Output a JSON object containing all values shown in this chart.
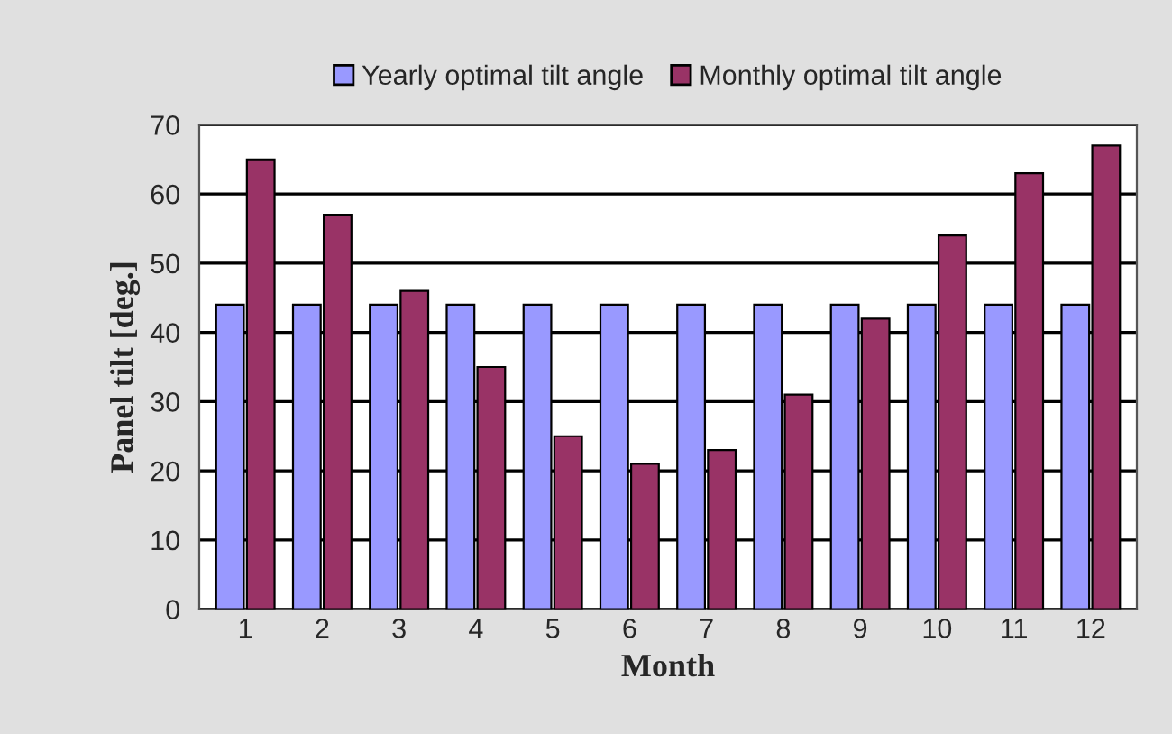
{
  "chart_data": {
    "type": "bar",
    "xlabel": "Month",
    "ylabel": "Panel tilt [deg.]",
    "categories": [
      "1",
      "2",
      "3",
      "4",
      "5",
      "6",
      "7",
      "8",
      "9",
      "10",
      "11",
      "12"
    ],
    "series": [
      {
        "name": "Yearly optimal tilt angle",
        "color": "#9999ff",
        "values": [
          44,
          44,
          44,
          44,
          44,
          44,
          44,
          44,
          44,
          44,
          44,
          44
        ]
      },
      {
        "name": "Monthly optimal tilt angle",
        "color": "#993366",
        "values": [
          65,
          57,
          46,
          35,
          25,
          21,
          23,
          31,
          42,
          54,
          63,
          67
        ]
      }
    ],
    "ylim": [
      0,
      70
    ],
    "yticks": [
      0,
      10,
      20,
      30,
      40,
      50,
      60,
      70
    ],
    "grid": "y",
    "legend": "top"
  }
}
